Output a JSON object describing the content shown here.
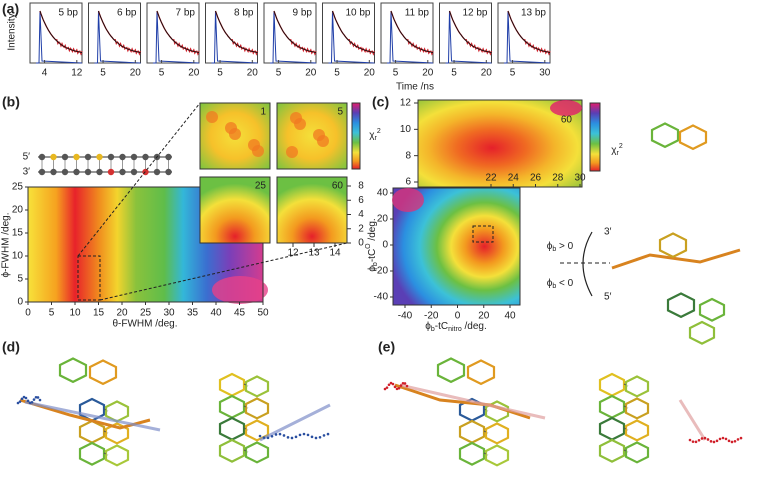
{
  "panel_a": {
    "label": "(a)",
    "y_label": "Intensity",
    "x_label": "Time  /ns",
    "subplots": [
      {
        "label": "5 bp",
        "xticks": [
          4,
          12
        ]
      },
      {
        "label": "6 bp",
        "xticks": [
          5,
          20
        ]
      },
      {
        "label": "7 bp",
        "xticks": [
          5,
          20
        ]
      },
      {
        "label": "8 bp",
        "xticks": [
          5,
          20
        ]
      },
      {
        "label": "9 bp",
        "xticks": [
          5,
          20
        ]
      },
      {
        "label": "10 bp",
        "xticks": [
          5,
          20
        ]
      },
      {
        "label": "11 bp",
        "xticks": [
          5,
          20
        ]
      },
      {
        "label": "12 bp",
        "xticks": [
          5,
          20
        ]
      },
      {
        "label": "13 bp",
        "xticks": [
          5,
          30
        ]
      }
    ]
  },
  "panel_b": {
    "label": "(b)",
    "strand_5": "5′",
    "strand_3": "3′",
    "x_label": "θ-FWHM  /deg.",
    "y_label": "ϕ-FWHM  /deg.",
    "xticks": [
      0,
      5,
      10,
      15,
      20,
      25,
      30,
      35,
      40,
      45,
      50
    ],
    "yticks": [
      0,
      5,
      10,
      15,
      20,
      25
    ],
    "insets": [
      "1",
      "5",
      "25",
      "60"
    ],
    "inset_xticks": [
      12,
      13,
      14
    ],
    "inset_yticks": [
      0,
      2,
      4,
      6,
      8
    ],
    "colorbar_label": [
      {
        "t": "χ"
      },
      {
        "t": "r",
        "shift": "sub"
      },
      {
        "t": "2",
        "shift": "super"
      }
    ]
  },
  "panel_c": {
    "label": "(c)",
    "x_label": [
      {
        "t": "ϕ"
      },
      {
        "t": "b",
        "shift": "sub"
      },
      {
        "t": "-tC"
      },
      {
        "t": "nitro",
        "shift": "sub"
      },
      {
        "t": "  /deg."
      }
    ],
    "y_label": [
      {
        "t": "ϕ"
      },
      {
        "t": "b",
        "shift": "sub"
      },
      {
        "t": "-tC"
      },
      {
        "t": "O",
        "shift": "super"
      },
      {
        "t": "  /deg."
      }
    ],
    "xticks": [
      -40,
      -20,
      0,
      20,
      40
    ],
    "yticks": [
      -40,
      -20,
      0,
      20,
      40
    ],
    "inset_label": "60",
    "inset_xticks": [
      22,
      24,
      26,
      28,
      30
    ],
    "inset_yticks": [
      6,
      8,
      10,
      12
    ],
    "colorbar_label": [
      {
        "t": "χ"
      },
      {
        "t": "r",
        "shift": "sub"
      },
      {
        "t": "2",
        "shift": "super"
      }
    ],
    "phi_pos": [
      {
        "t": "ϕ"
      },
      {
        "t": "b",
        "shift": "sub"
      },
      {
        "t": " > 0"
      }
    ],
    "phi_neg": [
      {
        "t": "ϕ"
      },
      {
        "t": "b",
        "shift": "sub"
      },
      {
        "t": " < 0"
      }
    ],
    "end_3": "3′",
    "end_5": "5′"
  },
  "panel_d": {
    "label": "(d)"
  },
  "panel_e": {
    "label": "(e)"
  }
}
